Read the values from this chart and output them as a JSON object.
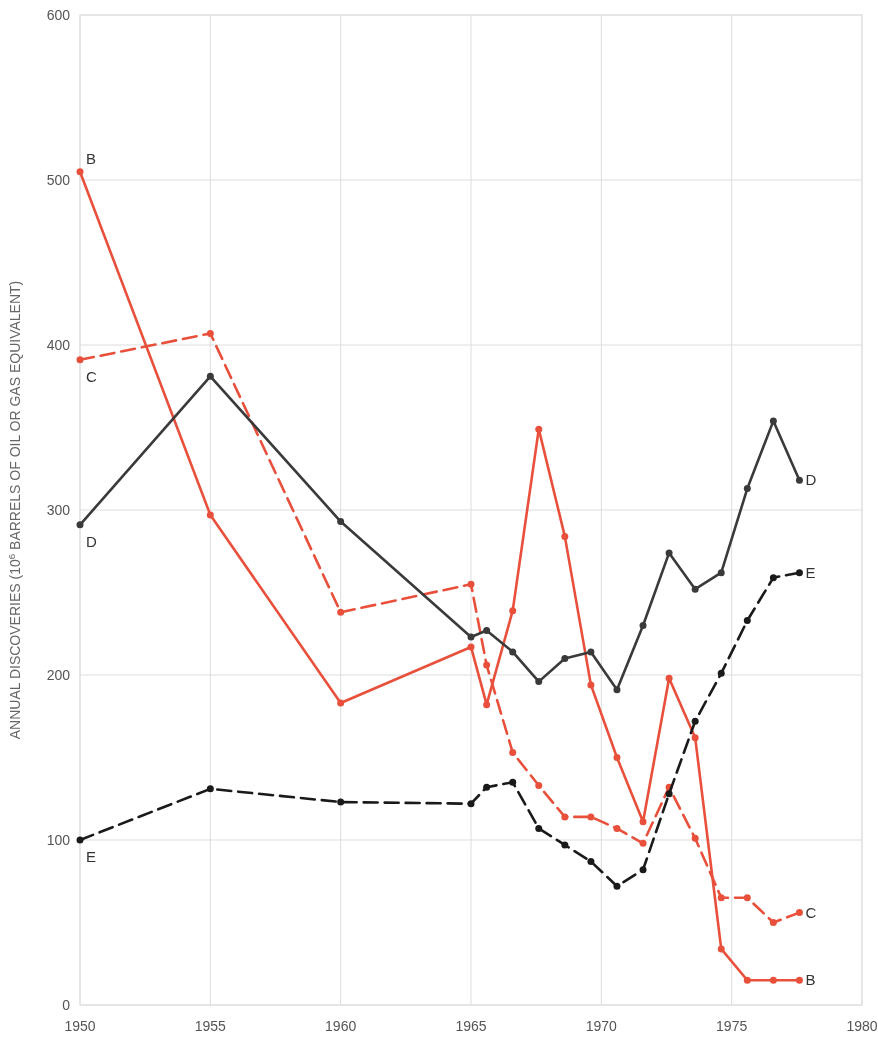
{
  "chart_data": {
    "type": "line",
    "ylabel": "ANNUAL DISCOVERIES (10$^{6}$ BARRELS OF OIL OR GAS EQUIVALENT)",
    "x": [
      1950,
      1955,
      1960,
      1965,
      1965.6,
      1966.6,
      1967.6,
      1968.6,
      1969.6,
      1970.6,
      1971.6,
      1972.6,
      1973.6,
      1974.6,
      1975.6,
      1976.6,
      1977.6
    ],
    "series": [
      {
        "name": "B",
        "color": "#e8503c",
        "line_style": "solid",
        "values": [
          505,
          297,
          183,
          217,
          182,
          239,
          349,
          284,
          194,
          150,
          111,
          198,
          162,
          34,
          15,
          15,
          15
        ]
      },
      {
        "name": "C",
        "color": "#e8503c",
        "line_style": "dashed",
        "values": [
          391,
          407,
          238,
          255,
          206,
          153,
          133,
          114,
          114,
          107,
          98,
          132,
          101,
          65,
          65,
          50,
          56
        ]
      },
      {
        "name": "D",
        "color": "#3a3a3a",
        "line_style": "solid",
        "values": [
          291,
          381,
          293,
          223,
          227,
          214,
          196,
          210,
          214,
          191,
          230,
          274,
          252,
          262,
          313,
          354,
          318
        ]
      },
      {
        "name": "E",
        "color": "#1a1a1a",
        "line_style": "dashed",
        "values": [
          100,
          131,
          123,
          122,
          132,
          135,
          107,
          97,
          87,
          72,
          82,
          128,
          172,
          201,
          233,
          259,
          262
        ]
      }
    ],
    "xlim": [
      1950,
      1980
    ],
    "xticks": [
      1950,
      1955,
      1960,
      1965,
      1970,
      1975,
      1980
    ],
    "ylim": [
      0,
      600
    ],
    "yticks": [
      0,
      100,
      200,
      300,
      400,
      500,
      600
    ],
    "grid": true,
    "marker": "circle"
  }
}
